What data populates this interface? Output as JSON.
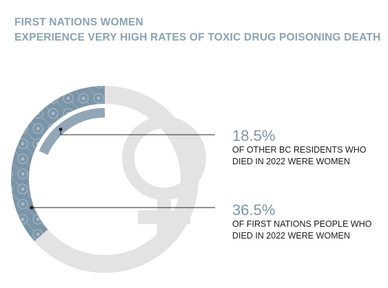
{
  "title": {
    "line1": "FIRST NATIONS WOMEN",
    "line2": "EXPERIENCE VERY HIGH RATES OF TOXIC DRUG POISONING DEATH"
  },
  "colors": {
    "title": "#8aa3b4",
    "accent_blue": "#7b95a8",
    "inner_ring": "#91a7b8",
    "track": "#e3e3e3",
    "text": "#1a1a1a"
  },
  "chart_data": {
    "type": "donut",
    "title": "FIRST NATIONS WOMEN EXPERIENCE VERY HIGH RATES OF TOXIC DRUG POISONING DEATH",
    "series": [
      {
        "value": 36.5,
        "label": "36.5%",
        "description": "OF FIRST NATIONS PEOPLE WHO DIED IN 2022 WERE WOMEN",
        "ring": "outer"
      },
      {
        "value": 18.5,
        "label": "18.5%",
        "description": "OF OTHER BC RESIDENTS WHO DIED IN 2022 WERE WOMEN",
        "ring": "inner"
      }
    ],
    "max": 100,
    "icon": "female-symbol-icon"
  },
  "stats": [
    {
      "value": "18.5%",
      "description": "OF OTHER BC RESIDENTS WHO DIED IN 2022 WERE WOMEN"
    },
    {
      "value": "36.5%",
      "description": "OF FIRST NATIONS PEOPLE WHO DIED IN 2022 WERE WOMEN"
    }
  ]
}
